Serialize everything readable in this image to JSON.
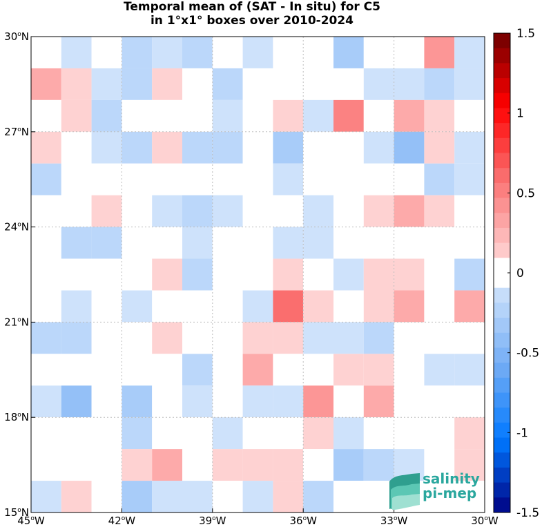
{
  "chart_data": {
    "type": "heatmap",
    "title_line1": "Temporal mean of (SAT - In situ) for C5",
    "title_line2": "in 1°x1° boxes over 2010-2024",
    "xlim": [
      -45,
      -30
    ],
    "ylim": [
      15,
      30
    ],
    "x_ticks": [
      {
        "value": -45,
        "deg": "45",
        "hemi": "W"
      },
      {
        "value": -42,
        "deg": "42",
        "hemi": "W"
      },
      {
        "value": -39,
        "deg": "39",
        "hemi": "W"
      },
      {
        "value": -36,
        "deg": "36",
        "hemi": "W"
      },
      {
        "value": -33,
        "deg": "33",
        "hemi": "W"
      },
      {
        "value": -30,
        "deg": "30",
        "hemi": "W"
      }
    ],
    "y_ticks": [
      {
        "value": 30,
        "deg": "30",
        "hemi": "N"
      },
      {
        "value": 27,
        "deg": "27",
        "hemi": "N"
      },
      {
        "value": 24,
        "deg": "24",
        "hemi": "N"
      },
      {
        "value": 21,
        "deg": "21",
        "hemi": "N"
      },
      {
        "value": 18,
        "deg": "18",
        "hemi": "N"
      },
      {
        "value": 15,
        "deg": "15",
        "hemi": "N"
      }
    ],
    "grid": true,
    "colorbar": {
      "min": -1.5,
      "max": 1.5,
      "levels": 32,
      "ticks": [
        {
          "value": 1.5,
          "label": "1.5"
        },
        {
          "value": 1,
          "label": "1"
        },
        {
          "value": 0.5,
          "label": "0.5"
        },
        {
          "value": 0,
          "label": "0"
        },
        {
          "value": -0.5,
          "label": "-0.5"
        },
        {
          "value": -1,
          "label": "-1"
        },
        {
          "value": -1.5,
          "label": "-1.5"
        }
      ]
    },
    "cell_size_deg": 1,
    "lon_centers": [
      -44.5,
      -43.5,
      -42.5,
      -41.5,
      -40.5,
      -39.5,
      -38.5,
      -37.5,
      -36.5,
      -35.5,
      -34.5,
      -33.5,
      -32.5,
      -31.5,
      -30.5
    ],
    "lat_centers_north_to_south": [
      29.5,
      28.5,
      27.5,
      26.5,
      25.5,
      24.5,
      23.5,
      22.5,
      21.5,
      20.5,
      19.5,
      18.5,
      17.5,
      16.5,
      15.5
    ],
    "values": [
      [
        0,
        -0.1,
        0,
        -0.2,
        -0.1,
        -0.2,
        0,
        -0.1,
        0,
        0,
        -0.3,
        0,
        0,
        0.4,
        -0.1
      ],
      [
        0.3,
        0.1,
        -0.1,
        -0.2,
        0.1,
        0,
        -0.2,
        0,
        0,
        0,
        0,
        -0.1,
        -0.1,
        -0.2,
        -0.1
      ],
      [
        0,
        0.1,
        -0.2,
        0,
        0,
        0,
        -0.1,
        0,
        0.1,
        -0.1,
        0.5,
        0,
        0.3,
        0.1,
        0
      ],
      [
        0.1,
        0,
        -0.1,
        -0.2,
        0.1,
        -0.2,
        -0.2,
        0,
        -0.3,
        0,
        0,
        -0.1,
        -0.4,
        0.1,
        -0.1
      ],
      [
        -0.2,
        0,
        0,
        0,
        0,
        0,
        0,
        0,
        -0.1,
        0,
        0,
        0,
        0,
        -0.2,
        -0.1
      ],
      [
        0,
        0,
        0.1,
        0,
        -0.1,
        -0.2,
        -0.1,
        0,
        0,
        -0.1,
        0,
        0.1,
        0.3,
        0.1,
        0
      ],
      [
        0,
        -0.2,
        -0.2,
        0,
        0,
        -0.1,
        0,
        0,
        -0.1,
        -0.1,
        0,
        0,
        0,
        0,
        0
      ],
      [
        0,
        0,
        0,
        0,
        0.1,
        -0.2,
        0,
        0,
        0.1,
        0,
        -0.1,
        0.1,
        0.1,
        0,
        -0.2
      ],
      [
        0,
        -0.1,
        0,
        -0.1,
        0,
        0,
        0,
        -0.1,
        0.6,
        0.1,
        0,
        0.1,
        0.3,
        0,
        0.3
      ],
      [
        -0.2,
        -0.2,
        0,
        0,
        0.1,
        0,
        0,
        0.1,
        0.1,
        -0.1,
        -0.1,
        -0.2,
        0,
        0,
        0
      ],
      [
        0,
        0,
        0,
        0,
        0,
        -0.2,
        0,
        0.3,
        0,
        0,
        0.1,
        0.1,
        0,
        -0.1,
        -0.1
      ],
      [
        -0.1,
        -0.4,
        0,
        -0.3,
        0,
        -0.1,
        0,
        -0.1,
        -0.1,
        0.4,
        0,
        0.3,
        0,
        0,
        0
      ],
      [
        0,
        0,
        0,
        -0.2,
        0,
        0,
        -0.1,
        0,
        0,
        0.1,
        -0.1,
        0,
        0,
        0,
        0.1
      ],
      [
        0,
        0,
        0,
        0.1,
        0.3,
        0,
        0.1,
        0.1,
        0.1,
        0,
        -0.3,
        -0.2,
        -0.1,
        0,
        0.1
      ],
      [
        -0.1,
        0.1,
        0,
        -0.3,
        -0.1,
        -0.1,
        0,
        -0.1,
        0.1,
        -0.2,
        0,
        0,
        0,
        0,
        0
      ]
    ]
  },
  "logo": {
    "line1": "salinity",
    "line2": "pi-mep"
  },
  "colors": {
    "logo_text": "#2aa79e",
    "logo_wave": "#3fb8a6",
    "grid": "#bdbdbd"
  }
}
